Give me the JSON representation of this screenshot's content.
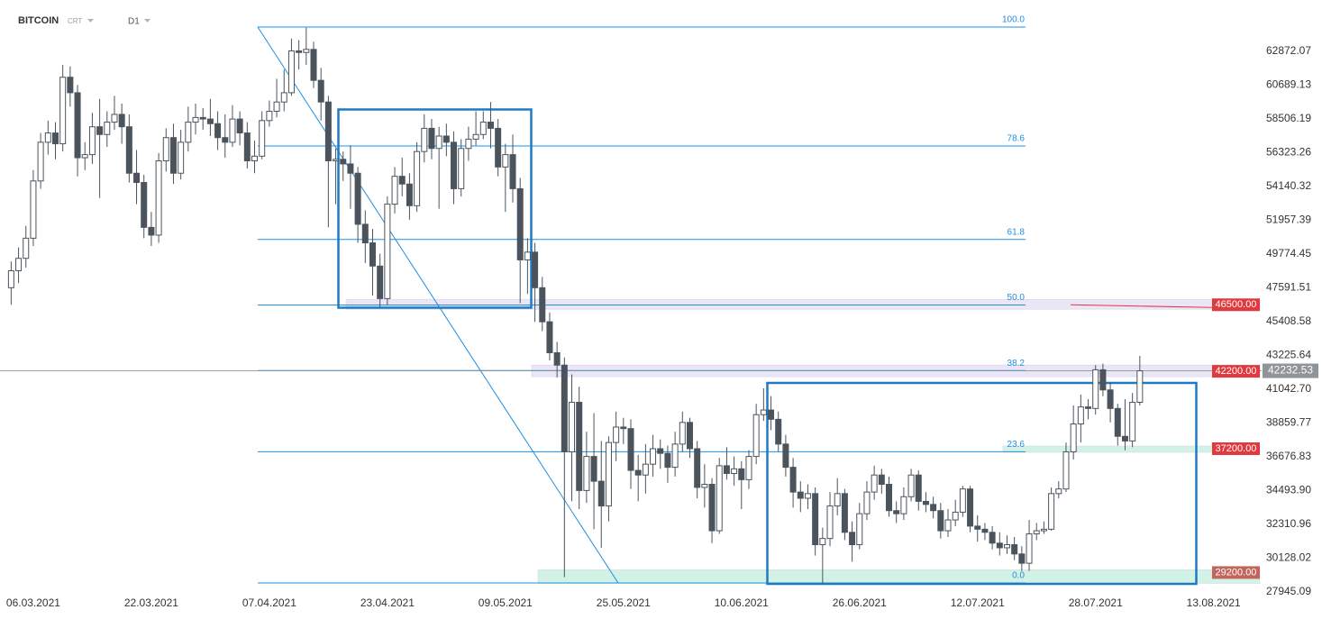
{
  "chart_data": {
    "type": "candlestick",
    "title": "BITCOIN",
    "subtitle": "CRT",
    "timeframe": "D1",
    "bull_color": "#ffffff",
    "bear_color": "#4b545c",
    "wick_color": "#4b545c",
    "xlim": [
      "01.03.2021",
      "20.08.2021"
    ],
    "xticks": [
      "06.03.2021",
      "22.03.2021",
      "07.04.2021",
      "23.04.2021",
      "09.05.2021",
      "25.05.2021",
      "10.06.2021",
      "26.06.2021",
      "12.07.2021",
      "28.07.2021",
      "13.08.2021"
    ],
    "ylim": [
      27770,
      66190
    ],
    "yticks": [
      62872.07,
      60689.13,
      58506.19,
      56323.26,
      54140.32,
      51957.39,
      49774.45,
      47591.51,
      45408.58,
      43225.64,
      {
        "value": 41042.7,
        "label": "41042.70"
      },
      38859.77,
      36676.83,
      {
        "value": 34493.9,
        "label": "34493.90"
      },
      32310.96,
      30128.02,
      27945.09
    ],
    "current_price": {
      "value": 42232.53,
      "label": "42232.53",
      "color": "#8f9499"
    },
    "levels": [
      {
        "value": 46500,
        "label": "46500.00",
        "color": "#e0393e",
        "zone_color": "#ebe6f6"
      },
      {
        "value": 42200,
        "label": "42200.00",
        "color": "#e0393e",
        "zone_color": "#ebe6f6"
      },
      {
        "value": 37200,
        "label": "37200.00",
        "color": "#e0393e",
        "zone_color": "#d2f2e5"
      },
      {
        "value": 29200,
        "label": "29200.00",
        "color": "#c2665d",
        "zone_color": "#d2f2e5"
      }
    ],
    "fibonacci": {
      "high": 64444,
      "low": 28527,
      "color": "#1e8fe1",
      "levels": [
        {
          "value": 100,
          "label": "100.0"
        },
        78.6,
        61.8,
        {
          "value": 50,
          "label": "50.0"
        },
        38.2,
        23.6,
        {
          "value": 0,
          "label": "0.0"
        }
      ]
    },
    "x": [
      "03.03.2021",
      "04.03.2021",
      "05.03.2021",
      "06.03.2021",
      "07.03.2021",
      "08.03.2021",
      "09.03.2021",
      "10.03.2021",
      "11.03.2021",
      "12.03.2021",
      "13.03.2021",
      "14.03.2021",
      "15.03.2021",
      "16.03.2021",
      "17.03.2021",
      "18.03.2021",
      "19.03.2021",
      "20.03.2021",
      "21.03.2021",
      "22.03.2021",
      "23.03.2021",
      "24.03.2021",
      "25.03.2021",
      "26.03.2021",
      "27.03.2021",
      "28.03.2021",
      "29.03.2021",
      "30.03.2021",
      "31.03.2021",
      "01.04.2021",
      "02.04.2021",
      "03.04.2021",
      "04.04.2021",
      "05.04.2021",
      "06.04.2021",
      "07.04.2021",
      "08.04.2021",
      "09.04.2021",
      "10.04.2021",
      "11.04.2021",
      "12.04.2021",
      "13.04.2021",
      "14.04.2021",
      "15.04.2021",
      "16.04.2021",
      "17.04.2021",
      "18.04.2021",
      "19.04.2021",
      "20.04.2021",
      "21.04.2021",
      "22.04.2021",
      "23.04.2021",
      "24.04.2021",
      "25.04.2021",
      "26.04.2021",
      "27.04.2021",
      "28.04.2021",
      "29.04.2021",
      "30.04.2021",
      "01.05.2021",
      "02.05.2021",
      "03.05.2021",
      "04.05.2021",
      "05.05.2021",
      "06.05.2021",
      "07.05.2021",
      "08.05.2021",
      "09.05.2021",
      "10.05.2021",
      "11.05.2021",
      "12.05.2021",
      "13.05.2021",
      "14.05.2021",
      "15.05.2021",
      "16.05.2021",
      "17.05.2021",
      "18.05.2021",
      "19.05.2021",
      "20.05.2021",
      "21.05.2021",
      "22.05.2021",
      "23.05.2021",
      "24.05.2021",
      "25.05.2021",
      "26.05.2021",
      "27.05.2021",
      "28.05.2021",
      "29.05.2021",
      "30.05.2021",
      "31.05.2021",
      "01.06.2021",
      "02.06.2021",
      "03.06.2021",
      "04.06.2021",
      "05.06.2021",
      "06.06.2021",
      "07.06.2021",
      "08.06.2021",
      "09.06.2021",
      "10.06.2021",
      "11.06.2021",
      "12.06.2021",
      "13.06.2021",
      "14.06.2021",
      "15.06.2021",
      "16.06.2021",
      "17.06.2021",
      "18.06.2021",
      "19.06.2021",
      "20.06.2021",
      "21.06.2021",
      "22.06.2021",
      "23.06.2021",
      "24.06.2021",
      "25.06.2021",
      "26.06.2021",
      "27.06.2021",
      "28.06.2021",
      "29.06.2021",
      "30.06.2021",
      "01.07.2021",
      "02.07.2021",
      "03.07.2021",
      "04.07.2021",
      "05.07.2021",
      "06.07.2021",
      "07.07.2021",
      "08.07.2021",
      "09.07.2021",
      "10.07.2021",
      "11.07.2021",
      "12.07.2021",
      "13.07.2021",
      "14.07.2021",
      "15.07.2021",
      "16.07.2021",
      "17.07.2021",
      "18.07.2021",
      "19.07.2021",
      "20.07.2021",
      "21.07.2021",
      "22.07.2021",
      "23.07.2021",
      "24.07.2021",
      "25.07.2021",
      "26.07.2021",
      "27.07.2021",
      "28.07.2021",
      "29.07.2021",
      "30.07.2021",
      "31.07.2021",
      "01.08.2021",
      "02.08.2021",
      "03.08.2021"
    ],
    "ohlc": [
      [
        47600,
        49300,
        46500,
        48700
      ],
      [
        48700,
        50200,
        47900,
        49500
      ],
      [
        49500,
        51600,
        48900,
        50800
      ],
      [
        50800,
        55200,
        50300,
        54500
      ],
      [
        54500,
        57600,
        54000,
        57000
      ],
      [
        57000,
        58400,
        56200,
        57600
      ],
      [
        57600,
        58300,
        55900,
        56900
      ],
      [
        56900,
        62000,
        56400,
        61200
      ],
      [
        61200,
        61900,
        59300,
        60200
      ],
      [
        60200,
        60700,
        54800,
        56000
      ],
      [
        56000,
        57000,
        55200,
        56200
      ],
      [
        56200,
        58900,
        55600,
        58000
      ],
      [
        58000,
        59800,
        53400,
        57500
      ],
      [
        57500,
        59000,
        56700,
        58300
      ],
      [
        58300,
        60000,
        57800,
        58800
      ],
      [
        58800,
        59500,
        56900,
        58000
      ],
      [
        58000,
        58800,
        54400,
        55000
      ],
      [
        55000,
        56500,
        53000,
        54400
      ],
      [
        54400,
        54900,
        50800,
        51500
      ],
      [
        51500,
        52500,
        50300,
        51000
      ],
      [
        51000,
        56300,
        50500,
        55800
      ],
      [
        55800,
        57900,
        55100,
        57300
      ],
      [
        57300,
        58200,
        54300,
        55000
      ],
      [
        55000,
        57800,
        54600,
        57000
      ],
      [
        57000,
        59300,
        56400,
        58300
      ],
      [
        58300,
        59500,
        57500,
        58600
      ],
      [
        58600,
        59200,
        57800,
        58500
      ],
      [
        58500,
        59800,
        57400,
        58200
      ],
      [
        58200,
        59000,
        56500,
        57300
      ],
      [
        57300,
        58800,
        56000,
        57000
      ],
      [
        57000,
        59400,
        56700,
        58500
      ],
      [
        58500,
        59000,
        56800,
        57600
      ],
      [
        57600,
        58300,
        55300,
        55800
      ],
      [
        55800,
        57100,
        55000,
        56100
      ],
      [
        56100,
        59000,
        55900,
        58400
      ],
      [
        58400,
        59700,
        58000,
        59000
      ],
      [
        59000,
        61100,
        58600,
        59600
      ],
      [
        59600,
        61700,
        59000,
        60200
      ],
      [
        60200,
        63700,
        60000,
        62900
      ],
      [
        62900,
        63600,
        61700,
        62800
      ],
      [
        62800,
        64400,
        62000,
        63000
      ],
      [
        63000,
        63500,
        60500,
        61000
      ],
      [
        61000,
        61800,
        58400,
        59600
      ],
      [
        59600,
        60000,
        51500,
        55800
      ],
      [
        55800,
        56600,
        53000,
        55900
      ],
      [
        55900,
        56400,
        54500,
        55600
      ],
      [
        55600,
        56800,
        52700,
        55000
      ],
      [
        55000,
        55400,
        50500,
        51700
      ],
      [
        51700,
        52600,
        49200,
        50500
      ],
      [
        50500,
        51400,
        47100,
        49000
      ],
      [
        49000,
        49800,
        46300,
        46900
      ],
      [
        46900,
        53500,
        46500,
        53000
      ],
      [
        53000,
        55400,
        52400,
        54800
      ],
      [
        54800,
        56000,
        53500,
        54300
      ],
      [
        54300,
        55000,
        52000,
        52900
      ],
      [
        52900,
        57000,
        52500,
        56400
      ],
      [
        56400,
        58800,
        55700,
        57900
      ],
      [
        57900,
        58500,
        55900,
        56600
      ],
      [
        56600,
        58000,
        52700,
        57400
      ],
      [
        57400,
        58200,
        56100,
        57000
      ],
      [
        57000,
        57700,
        53000,
        54000
      ],
      [
        54000,
        57200,
        53500,
        56600
      ],
      [
        56600,
        58000,
        55800,
        57200
      ],
      [
        57200,
        59000,
        56800,
        57500
      ],
      [
        57500,
        59000,
        57200,
        58300
      ],
      [
        58300,
        59600,
        56600,
        57900
      ],
      [
        57900,
        58500,
        54800,
        55400
      ],
      [
        55400,
        56900,
        52500,
        56200
      ],
      [
        56200,
        57500,
        53100,
        54000
      ],
      [
        54000,
        54700,
        46600,
        49400
      ],
      [
        49400,
        50800,
        47200,
        49900
      ],
      [
        49900,
        50500,
        45400,
        47600
      ],
      [
        47600,
        48300,
        44800,
        45400
      ],
      [
        45400,
        46000,
        42900,
        43400
      ],
      [
        43400,
        44100,
        41800,
        42600
      ],
      [
        42600,
        43100,
        28900,
        37000
      ],
      [
        37000,
        42000,
        33800,
        40200
      ],
      [
        40200,
        41200,
        33300,
        34500
      ],
      [
        34500,
        38300,
        33700,
        36700
      ],
      [
        36700,
        39500,
        32000,
        35100
      ],
      [
        35100,
        37700,
        30800,
        33500
      ],
      [
        33500,
        38000,
        32500,
        37600
      ],
      [
        37600,
        39600,
        36400,
        38600
      ],
      [
        38600,
        39200,
        37500,
        38500
      ],
      [
        38500,
        39100,
        34600,
        35800
      ],
      [
        35800,
        36800,
        33800,
        35500
      ],
      [
        35500,
        37500,
        34300,
        36200
      ],
      [
        36200,
        38100,
        35400,
        37200
      ],
      [
        37200,
        37800,
        35900,
        36900
      ],
      [
        36900,
        37400,
        35000,
        36000
      ],
      [
        36000,
        38300,
        35400,
        37500
      ],
      [
        37500,
        39600,
        37000,
        38900
      ],
      [
        38900,
        39200,
        36600,
        37200
      ],
      [
        37200,
        37700,
        34000,
        34700
      ],
      [
        34700,
        36200,
        33400,
        34900
      ],
      [
        34900,
        35300,
        31100,
        31900
      ],
      [
        31900,
        36600,
        31700,
        36100
      ],
      [
        36100,
        37300,
        35200,
        35600
      ],
      [
        35600,
        36700,
        34800,
        35900
      ],
      [
        35900,
        36400,
        33300,
        35200
      ],
      [
        35200,
        37100,
        34600,
        36700
      ],
      [
        36700,
        40100,
        36200,
        39400
      ],
      [
        39400,
        41100,
        39000,
        39700
      ],
      [
        39700,
        40600,
        38400,
        39100
      ],
      [
        39100,
        39600,
        37000,
        37500
      ],
      [
        37500,
        38100,
        35400,
        36000
      ],
      [
        36000,
        36600,
        33400,
        34400
      ],
      [
        34400,
        35100,
        33100,
        34000
      ],
      [
        34000,
        34900,
        33300,
        34300
      ],
      [
        34300,
        34700,
        30300,
        31000
      ],
      [
        31000,
        32100,
        28500,
        31400
      ],
      [
        31400,
        34400,
        30900,
        33500
      ],
      [
        33500,
        35300,
        32900,
        34300
      ],
      [
        34300,
        34600,
        31300,
        31800
      ],
      [
        31800,
        32500,
        29900,
        31000
      ],
      [
        31000,
        33700,
        30700,
        33000
      ],
      [
        33000,
        35100,
        32600,
        34400
      ],
      [
        34400,
        36100,
        33900,
        35500
      ],
      [
        35500,
        35900,
        34300,
        34900
      ],
      [
        34900,
        35400,
        32800,
        33200
      ],
      [
        33200,
        33800,
        32400,
        33000
      ],
      [
        33000,
        34700,
        32600,
        34100
      ],
      [
        34100,
        35900,
        33800,
        35500
      ],
      [
        35500,
        35800,
        33200,
        33800
      ],
      [
        33800,
        34400,
        33100,
        33600
      ],
      [
        33600,
        34100,
        32700,
        33200
      ],
      [
        33200,
        33700,
        31400,
        31900
      ],
      [
        31900,
        33300,
        31500,
        32600
      ],
      [
        32600,
        33900,
        32200,
        33100
      ],
      [
        33100,
        34800,
        32800,
        34600
      ],
      [
        34600,
        34800,
        31800,
        32200
      ],
      [
        32200,
        32900,
        31200,
        32000
      ],
      [
        32000,
        32400,
        31300,
        31800
      ],
      [
        31800,
        32200,
        30700,
        31100
      ],
      [
        31100,
        31800,
        30300,
        30800
      ],
      [
        30800,
        31600,
        30400,
        31000
      ],
      [
        31000,
        31500,
        30000,
        30400
      ],
      [
        30400,
        30900,
        29300,
        29800
      ],
      [
        29800,
        32600,
        29300,
        31700
      ],
      [
        31700,
        32400,
        31300,
        31900
      ],
      [
        31900,
        32500,
        31700,
        32000
      ],
      [
        32000,
        34700,
        31900,
        34300
      ],
      [
        34300,
        35100,
        34000,
        34600
      ],
      [
        34600,
        37600,
        34400,
        37000
      ],
      [
        37000,
        40000,
        36500,
        38800
      ],
      [
        38800,
        40700,
        37600,
        39900
      ],
      [
        39900,
        40400,
        39100,
        39800
      ],
      [
        39800,
        42600,
        39400,
        42300
      ],
      [
        42300,
        42700,
        40600,
        41000
      ],
      [
        41000,
        41500,
        38900,
        39800
      ],
      [
        39800,
        40100,
        37400,
        38000
      ],
      [
        38000,
        40400,
        37100,
        37700
      ],
      [
        37700,
        40800,
        37300,
        40200
      ],
      [
        40200,
        43200,
        40000,
        42233
      ]
    ]
  }
}
